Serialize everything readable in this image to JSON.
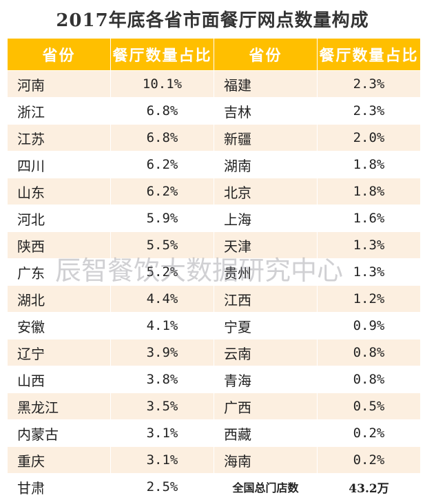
{
  "title": "2017年底各省市面餐厅网点数量构成",
  "headers": [
    "省份",
    "餐厅数量占比",
    "省份",
    "餐厅数量占比"
  ],
  "left_rows": [
    {
      "province": "河南",
      "share": "10.1%"
    },
    {
      "province": "浙江",
      "share": "6.8%"
    },
    {
      "province": "江苏",
      "share": "6.8%"
    },
    {
      "province": "四川",
      "share": "6.2%"
    },
    {
      "province": "山东",
      "share": "6.2%"
    },
    {
      "province": "河北",
      "share": "5.9%"
    },
    {
      "province": "陕西",
      "share": "5.5%"
    },
    {
      "province": "广东",
      "share": "5.2%"
    },
    {
      "province": "湖北",
      "share": "4.4%"
    },
    {
      "province": "安徽",
      "share": "4.1%"
    },
    {
      "province": "辽宁",
      "share": "3.9%"
    },
    {
      "province": "山西",
      "share": "3.8%"
    },
    {
      "province": "黑龙江",
      "share": "3.5%"
    },
    {
      "province": "内蒙古",
      "share": "3.1%"
    },
    {
      "province": "重庆",
      "share": "3.1%"
    },
    {
      "province": "甘肃",
      "share": "2.5%"
    }
  ],
  "right_rows": [
    {
      "province": "福建",
      "share": "2.3%"
    },
    {
      "province": "吉林",
      "share": "2.3%"
    },
    {
      "province": "新疆",
      "share": "2.0%"
    },
    {
      "province": "湖南",
      "share": "1.8%"
    },
    {
      "province": "北京",
      "share": "1.8%"
    },
    {
      "province": "上海",
      "share": "1.6%"
    },
    {
      "province": "天津",
      "share": "1.3%"
    },
    {
      "province": "贵州",
      "share": "1.3%"
    },
    {
      "province": "江西",
      "share": "1.2%"
    },
    {
      "province": "宁夏",
      "share": "0.9%"
    },
    {
      "province": "云南",
      "share": "0.8%"
    },
    {
      "province": "青海",
      "share": "0.8%"
    },
    {
      "province": "广西",
      "share": "0.5%"
    },
    {
      "province": "西藏",
      "share": "0.2%"
    },
    {
      "province": "海南",
      "share": "0.2%"
    }
  ],
  "total": {
    "label": "全国总门店数",
    "value": "43.2万"
  },
  "watermark": "辰智餐饮大数据研究中心",
  "colors": {
    "header_bg": "#ffbf00",
    "band_a": "#fcefe0",
    "band_b": "#ffffff"
  }
}
